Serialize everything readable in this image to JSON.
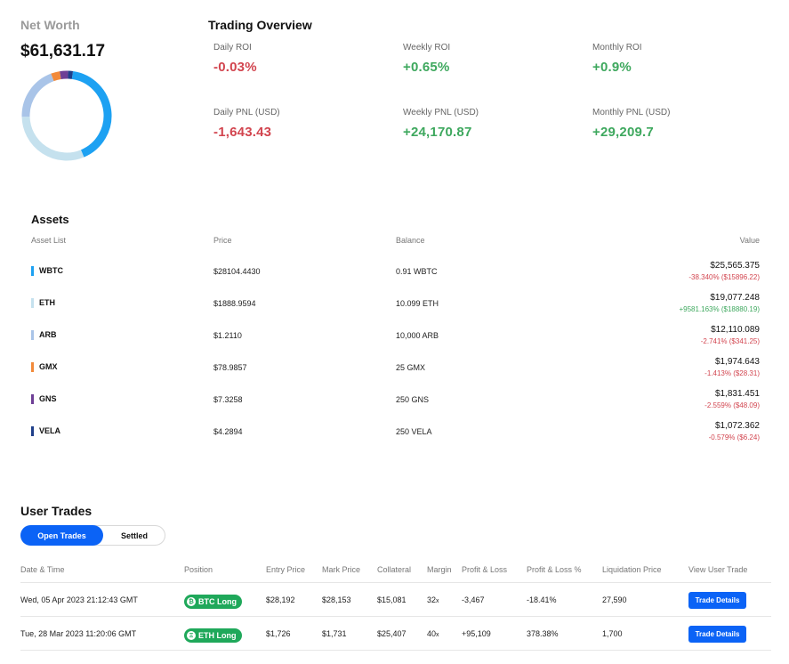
{
  "net_worth": {
    "label": "Net Worth",
    "value": "$61,631.17",
    "allocation": [
      {
        "asset": "WBTC",
        "share": 41.5,
        "color": "#1da1f2"
      },
      {
        "asset": "ETH",
        "share": 30.9,
        "color": "#c5e1ee"
      },
      {
        "asset": "ARB",
        "share": 19.7,
        "color": "#a9c4e8"
      },
      {
        "asset": "GMX",
        "share": 3.2,
        "color": "#f28a3a"
      },
      {
        "asset": "GNS",
        "share": 3.0,
        "color": "#6e3f96"
      },
      {
        "asset": "VELA",
        "share": 1.7,
        "color": "#1f3f8a"
      }
    ]
  },
  "trading_overview": {
    "title": "Trading Overview",
    "metrics": [
      {
        "label": "Daily ROI",
        "value": "-0.03%",
        "trend": "neg"
      },
      {
        "label": "Weekly ROI",
        "value": "+0.65%",
        "trend": "pos"
      },
      {
        "label": "Monthly ROI",
        "value": "+0.9%",
        "trend": "pos"
      },
      {
        "label": "Daily PNL (USD)",
        "value": "-1,643.43",
        "trend": "neg"
      },
      {
        "label": "Weekly PNL (USD)",
        "value": "+24,170.87",
        "trend": "pos"
      },
      {
        "label": "Monthly PNL (USD)",
        "value": "+29,209.7",
        "trend": "pos"
      }
    ]
  },
  "assets": {
    "title": "Assets",
    "columns": {
      "list": "Asset List",
      "price": "Price",
      "balance": "Balance",
      "value": "Value"
    },
    "rows": [
      {
        "symbol": "WBTC",
        "color": "#1da1f2",
        "price": "$28104.4430",
        "balance": "0.91 WBTC",
        "value": "$25,565.375",
        "change": "-38.340% ($15896.22)",
        "trend": "neg"
      },
      {
        "symbol": "ETH",
        "color": "#c5e1ee",
        "price": "$1888.9594",
        "balance": "10.099 ETH",
        "value": "$19,077.248",
        "change": "+9581.163% ($18880.19)",
        "trend": "pos"
      },
      {
        "symbol": "ARB",
        "color": "#a9c4e8",
        "price": "$1.2110",
        "balance": "10,000 ARB",
        "value": "$12,110.089",
        "change": "-2.741% ($341.25)",
        "trend": "neg"
      },
      {
        "symbol": "GMX",
        "color": "#f28a3a",
        "price": "$78.9857",
        "balance": "25 GMX",
        "value": "$1,974.643",
        "change": "-1.413% ($28.31)",
        "trend": "neg"
      },
      {
        "symbol": "GNS",
        "color": "#6e3f96",
        "price": "$7.3258",
        "balance": "250 GNS",
        "value": "$1,831.451",
        "change": "-2.559% ($48.09)",
        "trend": "neg"
      },
      {
        "symbol": "VELA",
        "color": "#1f3f8a",
        "price": "$4.2894",
        "balance": "250 VELA",
        "value": "$1,072.362",
        "change": "-0.579% ($6.24)",
        "trend": "neg"
      }
    ]
  },
  "user_trades": {
    "title": "User Trades",
    "tabs": {
      "open": "Open Trades",
      "settled": "Settled"
    },
    "columns": {
      "datetime": "Date & Time",
      "position": "Position",
      "entry": "Entry Price",
      "mark": "Mark Price",
      "collateral": "Collateral",
      "margin": "Margin",
      "pnl": "Profit & Loss",
      "pnl_pct": "Profit & Loss %",
      "liq": "Liquidation Price",
      "view": "View User Trade"
    },
    "rows": [
      {
        "datetime": "Wed, 05 Apr 2023 21:12:43 GMT",
        "position": "BTC Long",
        "position_glyph": "₿",
        "entry": "$28,192",
        "mark": "$28,153",
        "collateral": "$15,081",
        "margin": "32",
        "margin_unit": "x",
        "pnl": "-3,467",
        "pnl_pct": "-18.41%",
        "trend": "neg",
        "liq": "27,590",
        "button": "Trade Details"
      },
      {
        "datetime": "Tue, 28 Mar 2023 11:20:06 GMT",
        "position": "ETH Long",
        "position_glyph": "Ξ",
        "entry": "$1,726",
        "mark": "$1,731",
        "collateral": "$25,407",
        "margin": "40",
        "margin_unit": "x",
        "pnl": "+95,109",
        "pnl_pct": "378.38%",
        "trend": "pos",
        "liq": "1,700",
        "button": "Trade Details"
      }
    ]
  }
}
